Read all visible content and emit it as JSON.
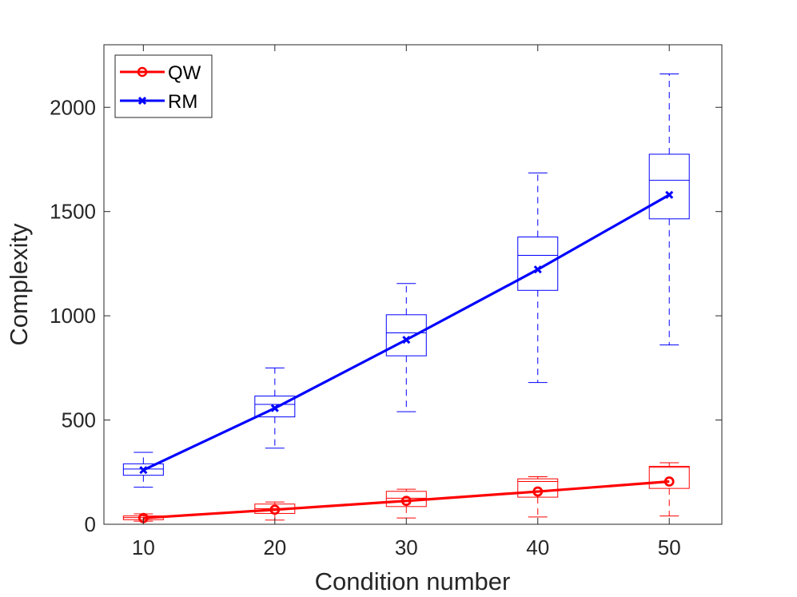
{
  "chart_data": {
    "type": "line",
    "xlabel": "Condition number",
    "ylabel": "Complexity",
    "xlim": [
      7,
      54
    ],
    "ylim": [
      0,
      2300
    ],
    "x": [
      10,
      20,
      30,
      40,
      50
    ],
    "x_ticks": [
      "10",
      "20",
      "30",
      "40",
      "50"
    ],
    "y_ticks": [
      0,
      500,
      1000,
      1500,
      2000
    ],
    "y_tick_labels": [
      "0",
      "500",
      "1000",
      "1500",
      "2000"
    ],
    "legend": {
      "placement": "top-left",
      "entries": [
        "QW",
        "RM"
      ]
    },
    "series": [
      {
        "name": "QW",
        "color": "#ff0000",
        "marker": "circle",
        "values": [
          30,
          70,
          112,
          157,
          205
        ],
        "boxes": [
          {
            "x": 10,
            "whisker_low": 15,
            "q1": 22,
            "median": 32,
            "q3": 40,
            "whisker_high": 50
          },
          {
            "x": 20,
            "whisker_low": 20,
            "q1": 52,
            "median": 75,
            "q3": 97,
            "whisker_high": 107
          },
          {
            "x": 30,
            "whisker_low": 30,
            "q1": 85,
            "median": 125,
            "q3": 158,
            "whisker_high": 168
          },
          {
            "x": 40,
            "whisker_low": 35,
            "q1": 130,
            "median": 205,
            "q3": 218,
            "whisker_high": 228
          },
          {
            "x": 50,
            "whisker_low": 40,
            "q1": 172,
            "median": 273,
            "q3": 278,
            "whisker_high": 295
          }
        ]
      },
      {
        "name": "RM",
        "color": "#0000ff",
        "marker": "x",
        "values": [
          260,
          557,
          885,
          1222,
          1580
        ],
        "boxes": [
          {
            "x": 10,
            "whisker_low": 178,
            "q1": 235,
            "median": 265,
            "q3": 290,
            "whisker_high": 345
          },
          {
            "x": 20,
            "whisker_low": 365,
            "q1": 515,
            "median": 575,
            "q3": 615,
            "whisker_high": 750
          },
          {
            "x": 30,
            "whisker_low": 540,
            "q1": 808,
            "median": 918,
            "q3": 1005,
            "whisker_high": 1155
          },
          {
            "x": 40,
            "whisker_low": 680,
            "q1": 1122,
            "median": 1290,
            "q3": 1378,
            "whisker_high": 1685
          },
          {
            "x": 50,
            "whisker_low": 860,
            "q1": 1465,
            "median": 1650,
            "q3": 1775,
            "whisker_high": 2160
          }
        ]
      }
    ]
  }
}
